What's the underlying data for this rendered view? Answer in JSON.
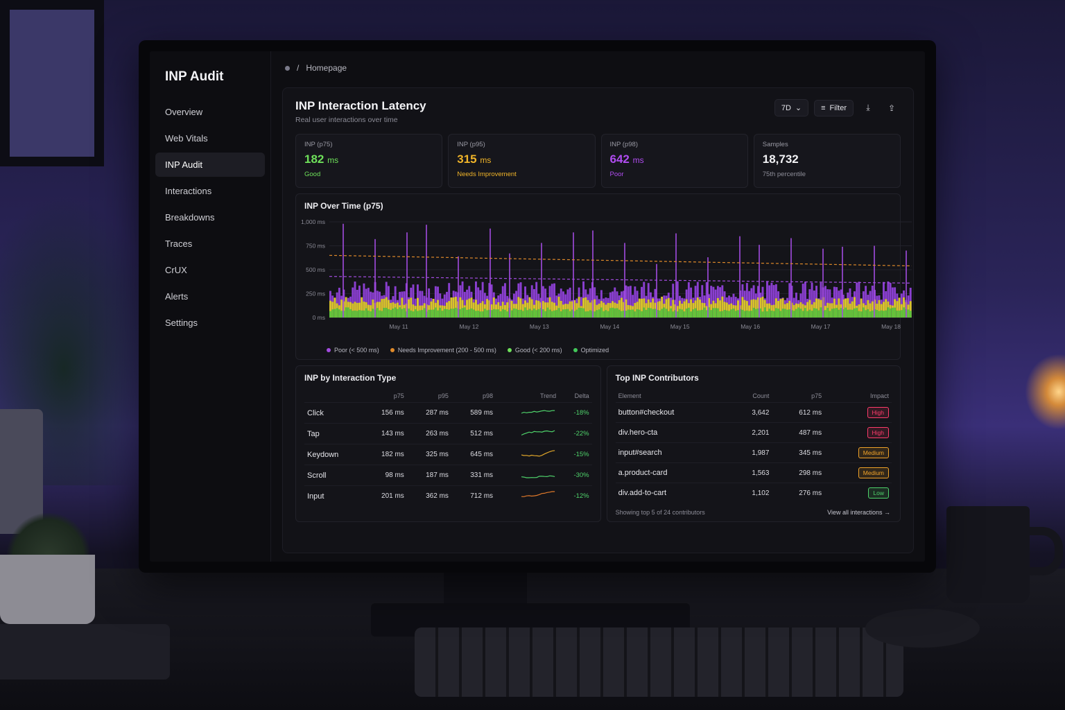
{
  "app": {
    "brand": "INP Audit"
  },
  "breadcrumb": {
    "separator": "/",
    "current": "Homepage"
  },
  "sidebar": {
    "items": [
      {
        "label": "Overview",
        "active": false
      },
      {
        "label": "Web Vitals",
        "active": false
      },
      {
        "label": "INP Audit",
        "active": true
      },
      {
        "label": "Interactions",
        "active": false
      },
      {
        "label": "Breakdowns",
        "active": false
      },
      {
        "label": "Traces",
        "active": false
      },
      {
        "label": "CrUX",
        "active": false
      },
      {
        "label": "Alerts",
        "active": false
      },
      {
        "label": "Settings",
        "active": false
      }
    ]
  },
  "header": {
    "title": "INP Interaction Latency",
    "subtitle": "Real user interactions over time",
    "range_select": "7D",
    "range_chevron": "⌄",
    "filter_icon_glyph": "≡",
    "filter_label": "Filter",
    "download_icon_glyph": "⤓",
    "share_icon_glyph": "⇪"
  },
  "kpis": [
    {
      "label": "INP (p75)",
      "value": "182",
      "unit": "ms",
      "status": "Good",
      "color": "#6ee05a"
    },
    {
      "label": "INP (p95)",
      "value": "315",
      "unit": "ms",
      "status": "Needs Improvement",
      "color": "#f0b429"
    },
    {
      "label": "INP (p98)",
      "value": "642",
      "unit": "ms",
      "status": "Poor",
      "color": "#b04cf0"
    },
    {
      "label": "Samples",
      "value": "18,732",
      "unit": "",
      "status": "75th percentile",
      "color": "#f2f2f5"
    }
  ],
  "chart_data": {
    "type": "bar",
    "title": "INP Over Time (p75)",
    "y_ticks": [
      "1,000 ms",
      "750 ms",
      "500 ms",
      "250 ms",
      "0 ms"
    ],
    "ylim": [
      0,
      1000
    ],
    "x_ticks": [
      "May 11",
      "May 12",
      "May 13",
      "May 14",
      "May 15",
      "May 16",
      "May 17",
      "May 18"
    ],
    "threshold_lines": [
      {
        "name": "Needs Improvement",
        "start": 650,
        "end": 540,
        "color": "#e08a2a"
      },
      {
        "name": "Poor",
        "start": 430,
        "end": 360,
        "color": "#a24ce0"
      }
    ],
    "spike_values": [
      980,
      820,
      890,
      970,
      640,
      930,
      670,
      780,
      890,
      910,
      780,
      560,
      880,
      630,
      850,
      760,
      830,
      720,
      740,
      750,
      700
    ],
    "baseline_band": {
      "green": 90,
      "yellow": 200,
      "purple": 330
    },
    "grid": true,
    "legend": [
      {
        "label": "Poor (< 500 ms)",
        "color": "#a24ce0"
      },
      {
        "label": "Needs Improvement (200 - 500 ms)",
        "color": "#e08a2a"
      },
      {
        "label": "Good (< 200 ms)",
        "color": "#6ee05a"
      },
      {
        "label": "Optimized",
        "color": "#43c85a"
      }
    ]
  },
  "interaction_table": {
    "title": "INP by Interaction Type",
    "columns": [
      "p75",
      "p95",
      "p98",
      "Trend",
      "Delta"
    ],
    "rows": [
      {
        "type": "Click",
        "p75": "156 ms",
        "p95": "287 ms",
        "p98": "589 ms",
        "delta": "-18%",
        "trend_color": "#4fd36b"
      },
      {
        "type": "Tap",
        "p75": "143 ms",
        "p95": "263 ms",
        "p98": "512 ms",
        "delta": "-22%",
        "trend_color": "#4fd36b"
      },
      {
        "type": "Keydown",
        "p75": "182 ms",
        "p95": "325 ms",
        "p98": "645 ms",
        "delta": "-15%",
        "trend_color": "#e0a62a"
      },
      {
        "type": "Scroll",
        "p75": "98 ms",
        "p95": "187 ms",
        "p98": "331 ms",
        "delta": "-30%",
        "trend_color": "#4fd36b"
      },
      {
        "type": "Input",
        "p75": "201 ms",
        "p95": "362 ms",
        "p98": "712 ms",
        "delta": "-12%",
        "trend_color": "#e0792a"
      }
    ]
  },
  "contributors": {
    "title": "Top INP Contributors",
    "columns": [
      "Element",
      "Count",
      "p75",
      "Impact"
    ],
    "rows": [
      {
        "element": "button#checkout",
        "count": "3,642",
        "p75": "612 ms",
        "impact": "High",
        "color": "#ff3b6b"
      },
      {
        "element": "div.hero-cta",
        "count": "2,201",
        "p75": "487 ms",
        "impact": "High",
        "color": "#ff3b6b"
      },
      {
        "element": "input#search",
        "count": "1,987",
        "p75": "345 ms",
        "impact": "Medium",
        "color": "#f0a229"
      },
      {
        "element": "a.product-card",
        "count": "1,563",
        "p75": "298 ms",
        "impact": "Medium",
        "color": "#f0a229"
      },
      {
        "element": "div.add-to-cart",
        "count": "1,102",
        "p75": "276 ms",
        "impact": "Low",
        "color": "#4fd36b"
      }
    ],
    "footer": "Showing top 5 of 24 contributors",
    "view_all": "View all interactions →"
  }
}
